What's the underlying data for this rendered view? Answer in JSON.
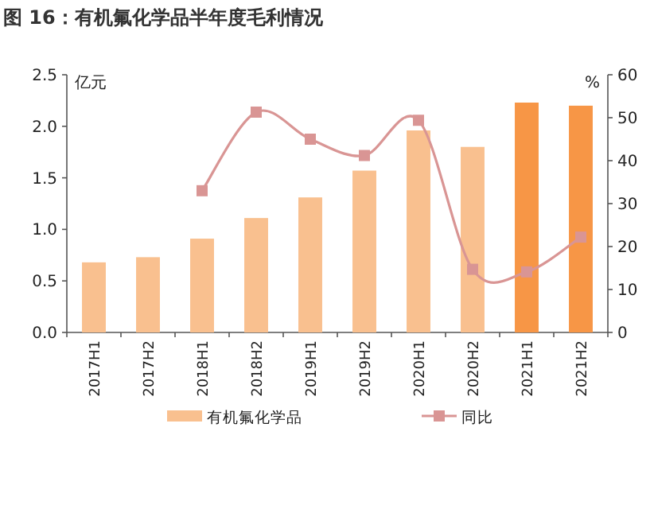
{
  "chart_data": {
    "type": "bar",
    "title": "图 16：有机氟化学品半年度毛利情况",
    "categories": [
      "2017H1",
      "2017H2",
      "2018H1",
      "2018H2",
      "2019H1",
      "2019H2",
      "2020H1",
      "2020H2",
      "2021H1",
      "2021H2"
    ],
    "ylabel": "亿元",
    "y2label": "%",
    "ylim": [
      0,
      2.5
    ],
    "yticks": [
      {
        "value": 0,
        "label": "0.0"
      },
      {
        "value": 0.5,
        "label": "0.5"
      },
      {
        "value": 1,
        "label": "1.0"
      },
      {
        "value": 1.5,
        "label": "1.5"
      },
      {
        "value": 2,
        "label": "2.0"
      },
      {
        "value": 2.5,
        "label": "2.5"
      }
    ],
    "y2lim": [
      0,
      60
    ],
    "y2ticks": [
      0,
      10,
      20,
      30,
      40,
      50,
      60
    ],
    "legend": "bottom",
    "series": [
      {
        "name": "有机氟化学品",
        "color": "#f9c08f",
        "colors": [
          "#f9c08f",
          "#f9c08f",
          "#f9c08f",
          "#f9c08f",
          "#f9c08f",
          "#f9c08f",
          "#f9c08f",
          "#f9c08f",
          "#f79646",
          "#f79646"
        ],
        "values": [
          0.68,
          0.73,
          0.91,
          1.11,
          1.31,
          1.57,
          1.96,
          1.8,
          2.23,
          2.2
        ]
      },
      {
        "name": "同比",
        "type": "line",
        "axis": "y2",
        "marker": "square",
        "color": "#d99594",
        "values": [
          null,
          null,
          33.0,
          51.3,
          45.0,
          41.2,
          49.4,
          14.7,
          14.1,
          22.2
        ]
      }
    ]
  }
}
